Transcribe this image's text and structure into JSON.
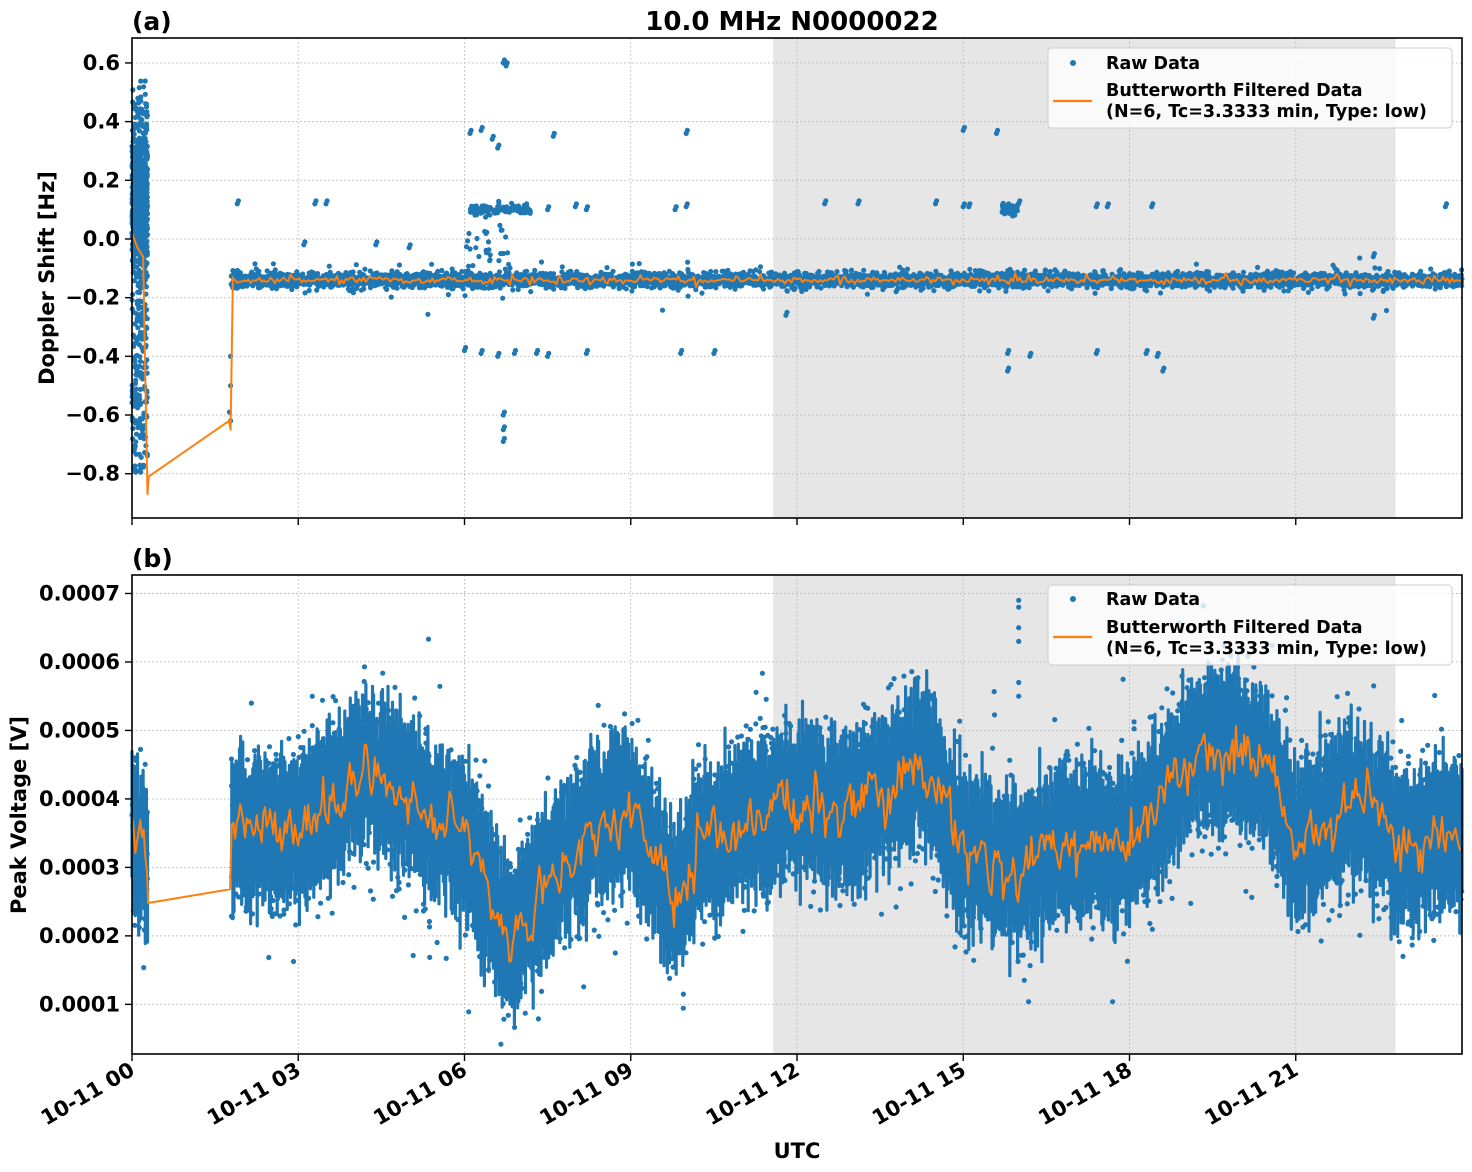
{
  "title": "10.0 MHz N0000022",
  "colors": {
    "raw": "#1f77b4",
    "filtered": "#ff7f0e",
    "shade": "#e6e6e6",
    "grid": "#b0b0b0"
  },
  "chart_data": [
    {
      "type": "scatter",
      "panel_tag": "(a)",
      "title": "10.0 MHz N0000022",
      "xlabel": "",
      "ylabel": "Doppler Shift [Hz]",
      "x_units": "hours UTC since 10-11 00",
      "xlim": [
        0,
        24
      ],
      "ylim": [
        -0.951,
        0.685
      ],
      "yticks": [
        0.6,
        0.4,
        0.2,
        0.0,
        -0.2,
        -0.4,
        -0.6,
        -0.8
      ],
      "ytick_labels": [
        "0.6",
        "0.4",
        "0.2",
        "0.0",
        "−0.2",
        "−0.4",
        "−0.6",
        "−0.8"
      ],
      "grid": true,
      "shaded_span_hours": [
        11.57,
        22.8
      ],
      "legend_position": "top-right",
      "series": [
        {
          "name": "Raw Data",
          "kind": "points",
          "segments": [
            {
              "x_range": [
                0.0,
                0.3
              ],
              "center": 0.05,
              "spread": 0.45,
              "note": "scattered from ~0.54 to ~-0.82"
            },
            {
              "x_range": [
                1.8,
                24.0
              ],
              "center": -0.14,
              "spread": 0.03
            }
          ],
          "outliers": [
            {
              "x": 1.9,
              "y": 0.12
            },
            {
              "x": 3.3,
              "y": 0.12
            },
            {
              "x": 3.5,
              "y": 0.12
            },
            {
              "x": 3.1,
              "y": -0.02
            },
            {
              "x": 4.4,
              "y": -0.02
            },
            {
              "x": 5.0,
              "y": -0.03
            },
            {
              "x": 6.1,
              "y": 0.36
            },
            {
              "x": 6.3,
              "y": 0.37
            },
            {
              "x": 6.5,
              "y": 0.34
            },
            {
              "x": 6.6,
              "y": 0.31
            },
            {
              "x": 6.7,
              "y": 0.6
            },
            {
              "x": 6.75,
              "y": 0.59
            },
            {
              "x": 7.6,
              "y": 0.35
            },
            {
              "x": 6.3,
              "y": 0.1
            },
            {
              "x": 6.6,
              "y": 0.11
            },
            {
              "x": 6.9,
              "y": 0.1
            },
            {
              "x": 7.1,
              "y": 0.11
            },
            {
              "x": 7.5,
              "y": 0.1
            },
            {
              "x": 8.0,
              "y": 0.11
            },
            {
              "x": 8.2,
              "y": 0.1
            },
            {
              "x": 6.0,
              "y": -0.38
            },
            {
              "x": 6.3,
              "y": -0.39
            },
            {
              "x": 6.6,
              "y": -0.4
            },
            {
              "x": 6.9,
              "y": -0.39
            },
            {
              "x": 7.3,
              "y": -0.39
            },
            {
              "x": 7.5,
              "y": -0.4
            },
            {
              "x": 8.2,
              "y": -0.39
            },
            {
              "x": 6.7,
              "y": -0.6
            },
            {
              "x": 6.7,
              "y": -0.65
            },
            {
              "x": 6.7,
              "y": -0.69
            },
            {
              "x": 9.8,
              "y": 0.1
            },
            {
              "x": 10.0,
              "y": 0.11
            },
            {
              "x": 10.0,
              "y": 0.36
            },
            {
              "x": 9.9,
              "y": -0.39
            },
            {
              "x": 10.5,
              "y": -0.39
            },
            {
              "x": 11.8,
              "y": -0.26
            },
            {
              "x": 12.5,
              "y": 0.12
            },
            {
              "x": 13.1,
              "y": 0.12
            },
            {
              "x": 14.5,
              "y": 0.12
            },
            {
              "x": 15.0,
              "y": 0.11
            },
            {
              "x": 15.0,
              "y": 0.37
            },
            {
              "x": 15.6,
              "y": 0.36
            },
            {
              "x": 15.1,
              "y": 0.11
            },
            {
              "x": 15.8,
              "y": 0.11
            },
            {
              "x": 16.0,
              "y": 0.12
            },
            {
              "x": 15.8,
              "y": -0.39
            },
            {
              "x": 16.2,
              "y": -0.4
            },
            {
              "x": 15.8,
              "y": -0.45
            },
            {
              "x": 17.4,
              "y": 0.11
            },
            {
              "x": 17.6,
              "y": 0.11
            },
            {
              "x": 18.4,
              "y": 0.11
            },
            {
              "x": 17.4,
              "y": -0.39
            },
            {
              "x": 18.3,
              "y": -0.39
            },
            {
              "x": 18.5,
              "y": -0.4
            },
            {
              "x": 18.6,
              "y": -0.45
            },
            {
              "x": 22.4,
              "y": -0.06
            },
            {
              "x": 22.4,
              "y": -0.27
            },
            {
              "x": 23.7,
              "y": 0.11
            }
          ]
        },
        {
          "name": "Butterworth Filtered Data\n(N=6, Tc=3.3333 min, Type: low)",
          "kind": "line",
          "x": [
            0.0,
            0.1,
            0.2,
            0.25,
            0.28,
            0.3,
            1.75,
            1.78,
            1.82,
            24.0
          ],
          "y": [
            0.02,
            -0.03,
            -0.06,
            -0.58,
            -0.87,
            -0.81,
            -0.62,
            -0.65,
            -0.13,
            -0.14
          ],
          "note": "after 1.82 h follows -0.14 with small ripples"
        }
      ]
    },
    {
      "type": "scatter",
      "panel_tag": "(b)",
      "xlabel": "UTC",
      "ylabel": "Peak Voltage [V]",
      "x_units": "hours UTC since 10-11 00",
      "xlim": [
        0,
        24
      ],
      "ylim": [
        2.75e-05,
        0.000727
      ],
      "yticks": [
        0.0007,
        0.0006,
        0.0005,
        0.0004,
        0.0003,
        0.0002,
        0.0001
      ],
      "ytick_labels": [
        "0.0007",
        "0.0006",
        "0.0005",
        "0.0004",
        "0.0003",
        "0.0002",
        "0.0001"
      ],
      "xticks": [
        0,
        3,
        6,
        9,
        12,
        15,
        18,
        21
      ],
      "xtick_labels": [
        "10-11 00",
        "10-11 03",
        "10-11 06",
        "10-11 09",
        "10-11 12",
        "10-11 15",
        "10-11 18",
        "10-11 21"
      ],
      "grid": true,
      "shaded_span_hours": [
        11.57,
        22.8
      ],
      "legend_position": "top-right",
      "series": [
        {
          "name": "Raw Data",
          "kind": "points",
          "envelope_hours": [
            0.0,
            0.3,
            1.8,
            3.0,
            4.2,
            5.3,
            6.0,
            6.8,
            7.5,
            8.5,
            9.0,
            9.8,
            10.2,
            11.0,
            12.0,
            13.0,
            14.3,
            15.0,
            16.0,
            17.0,
            18.0,
            19.0,
            19.8,
            20.5,
            21.0,
            22.0,
            23.0,
            24.0
          ],
          "envelope_center": [
            0.00036,
            0.0003,
            0.00036,
            0.00035,
            0.00045,
            0.00038,
            0.00034,
            0.00019,
            0.00028,
            0.00037,
            0.00038,
            0.00025,
            0.00033,
            0.00036,
            0.0004,
            0.00038,
            0.00045,
            0.00033,
            0.0003,
            0.00034,
            0.00033,
            0.00045,
            0.00048,
            0.00045,
            0.00033,
            0.0004,
            0.00033,
            0.00035
          ],
          "envelope_halfwidth": 9.5e-05,
          "outliers": [
            {
              "x": 16.0,
              "y": 0.00069
            },
            {
              "x": 16.0,
              "y": 0.00068
            },
            {
              "x": 16.0,
              "y": 0.00065
            },
            {
              "x": 16.0,
              "y": 0.00063
            },
            {
              "x": 16.0,
              "y": 0.00057
            },
            {
              "x": 16.0,
              "y": 0.00055
            }
          ]
        },
        {
          "name": "Butterworth Filtered Data\n(N=6, Tc=3.3333 min, Type: low)",
          "kind": "line",
          "gap_hours": [
            0.28,
            1.78
          ],
          "gap_endpoints_y": [
            0.000248,
            0.000268
          ]
        }
      ]
    }
  ],
  "legend": {
    "raw_label": "Raw Data",
    "filtered_label_line1": "Butterworth Filtered Data",
    "filtered_label_line2": "(N=6, Tc=3.3333 min, Type: low)"
  }
}
